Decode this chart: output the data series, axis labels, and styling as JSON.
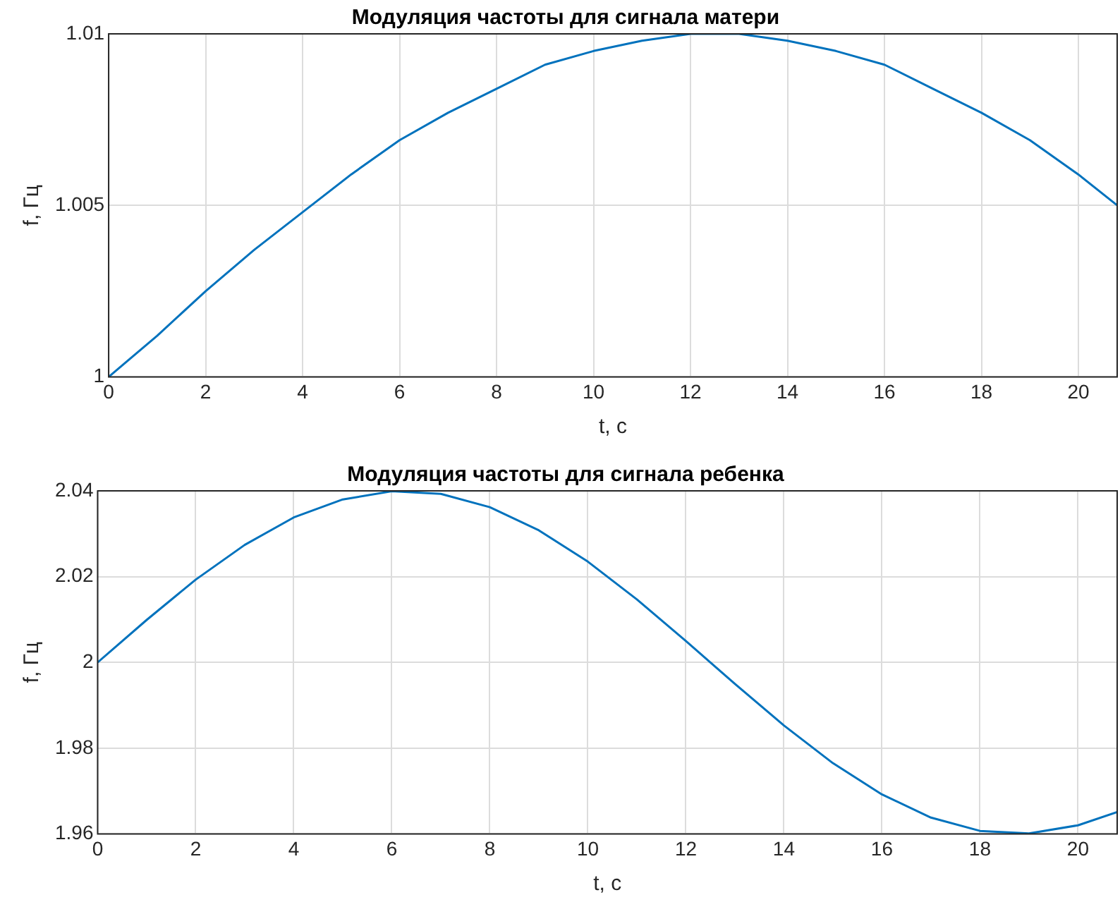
{
  "chart_data": [
    {
      "type": "line",
      "title": "Модуляция частоты для сигнала матери",
      "xlabel": "t, с",
      "ylabel": "f, Гц",
      "x": [
        0,
        1,
        2,
        3,
        4,
        5,
        6,
        7,
        8,
        9,
        10,
        11,
        12,
        13,
        14,
        15,
        16,
        17,
        18,
        19,
        20,
        20.8
      ],
      "series": [
        {
          "color": "#0072bd",
          "values": [
            1.0,
            1.0012,
            1.0025,
            1.0037,
            1.0048,
            1.0059,
            1.0069,
            1.0077,
            1.0084,
            1.0091,
            1.0095,
            1.0098,
            1.01,
            1.01,
            1.0098,
            1.0095,
            1.0091,
            1.0084,
            1.0077,
            1.0069,
            1.0059,
            1.005
          ]
        }
      ],
      "xlim": [
        0,
        20.8
      ],
      "xticks": [
        0,
        2,
        4,
        6,
        8,
        10,
        12,
        14,
        16,
        18,
        20
      ],
      "ylim": [
        1,
        1.01
      ],
      "yticks": [
        1,
        1.005,
        1.01
      ],
      "grid": true,
      "marker": "none",
      "line_style": "solid"
    },
    {
      "type": "line",
      "title": "Модуляция частоты для сигнала ребенка",
      "xlabel": "t, с",
      "ylabel": "f, Гц",
      "x": [
        0,
        1,
        2,
        3,
        4,
        5,
        6,
        7,
        8,
        9,
        10,
        11,
        12,
        13,
        14,
        15,
        16,
        17,
        18,
        19,
        20,
        20.8
      ],
      "series": [
        {
          "color": "#0072bd",
          "values": [
            2.0,
            2.0099,
            2.0193,
            2.0274,
            2.0338,
            2.038,
            2.0399,
            2.0393,
            2.0362,
            2.0308,
            2.0235,
            2.0147,
            2.005,
            1.995,
            1.9853,
            1.9765,
            1.9692,
            1.9638,
            1.9607,
            1.9601,
            1.962,
            1.9651
          ]
        }
      ],
      "xlim": [
        0,
        20.8
      ],
      "xticks": [
        0,
        2,
        4,
        6,
        8,
        10,
        12,
        14,
        16,
        18,
        20
      ],
      "ylim": [
        1.96,
        2.04
      ],
      "yticks": [
        1.96,
        1.98,
        2,
        2.02,
        2.04
      ],
      "grid": true,
      "marker": "none",
      "line_style": "solid"
    }
  ]
}
